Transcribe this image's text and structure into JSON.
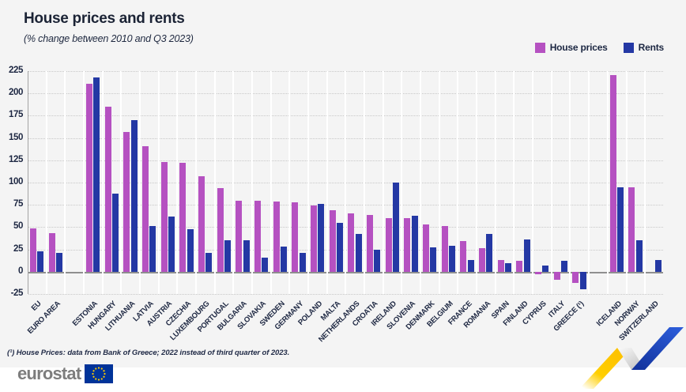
{
  "header": {
    "title": "House prices and rents",
    "subtitle": "(% change between 2010 and Q3 2023)"
  },
  "legend": {
    "house_prices": "House prices",
    "rents": "Rents"
  },
  "colors": {
    "house_prices": "#b551c1",
    "rents": "#2438a4",
    "text_dark": "#1d2742",
    "plot_background": "#f4f4f4",
    "grid_separator": "#ffffff",
    "zero_line": "#8f8f8f",
    "eu_flag_blue": "#003399",
    "eu_flag_stars": "#ffcc00",
    "ribbon_yellow": "#ffcf00",
    "ribbon_blue": "#2247c6"
  },
  "chart_data": {
    "type": "bar",
    "title": "House prices and rents",
    "subtitle": "(% change between 2010 and Q3 2023)",
    "ylabel": "",
    "xlabel": "",
    "ylim": [
      -25,
      225
    ],
    "yticks": [
      225,
      200,
      175,
      150,
      125,
      100,
      75,
      50,
      25,
      0,
      -25
    ],
    "grid": true,
    "legend_position": "top-right",
    "categories": [
      "EU",
      "EURO AREA",
      "",
      "ESTONIA",
      "HUNGARY",
      "LITHUANIA",
      "LATVIA",
      "AUSTRIA",
      "CZECHIA",
      "LUXEMBOURG",
      "PORTUGAL",
      "BULGARIA",
      "SLOVAKIA",
      "SWEDEN",
      "GERMANY",
      "POLAND",
      "MALTA",
      "NETHERLANDS",
      "CROATIA",
      "IRELAND",
      "SLOVENIA",
      "DENMARK",
      "BELGIUM",
      "FRANCE",
      "ROMANIA",
      "SPAIN",
      "FINLAND",
      "CYPRUS",
      "ITALY",
      "GREECE (¹)",
      "",
      "ICELAND",
      "NORWAY",
      "SWITZERLAND"
    ],
    "series": [
      {
        "name": "House prices",
        "color": "#b551c1",
        "values": [
          49,
          43,
          null,
          211,
          185,
          157,
          141,
          123,
          122,
          107,
          94,
          80,
          80,
          79,
          78,
          74,
          69,
          65,
          64,
          60,
          60,
          53,
          51,
          34,
          26,
          13,
          12,
          -3,
          -9,
          -13,
          null,
          221,
          95,
          null
        ]
      },
      {
        "name": "Rents",
        "color": "#2438a4",
        "values": [
          23,
          21,
          null,
          218,
          88,
          170,
          51,
          62,
          48,
          21,
          35,
          35,
          16,
          28,
          21,
          76,
          55,
          42,
          25,
          100,
          63,
          27,
          29,
          13,
          42,
          10,
          36,
          7,
          12,
          -20,
          null,
          95,
          35,
          13
        ]
      }
    ]
  },
  "footnote": "(¹) House Prices: data from Bank of Greece; 2022 instead of third quarter of 2023.",
  "footer": {
    "logo_text": "eurostat"
  }
}
